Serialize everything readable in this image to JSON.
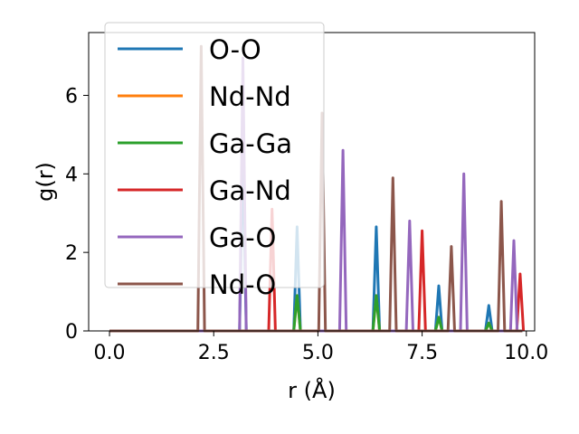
{
  "chart_data": {
    "type": "line",
    "xlabel": "r (Å)",
    "ylabel": "g(r)",
    "xlim": [
      -0.5,
      10.2
    ],
    "ylim": [
      0,
      7.6
    ],
    "xticks": [
      0.0,
      2.5,
      5.0,
      7.5,
      10.0
    ],
    "xtick_labels": [
      "0.0",
      "2.5",
      "5.0",
      "7.5",
      "10.0"
    ],
    "yticks": [
      0,
      2,
      4,
      6
    ],
    "ytick_labels": [
      "0",
      "2",
      "4",
      "6"
    ],
    "grid": false,
    "legend_position": "upper-left",
    "x_start": 0.0,
    "x_end": 9.9,
    "series": [
      {
        "name": "O-O",
        "color": "#1f77b4",
        "peaks": [
          [
            3.2,
            4.6
          ],
          [
            4.5,
            2.65
          ],
          [
            6.4,
            2.65
          ],
          [
            7.9,
            1.15
          ],
          [
            9.1,
            0.65
          ]
        ]
      },
      {
        "name": "Nd-Nd",
        "color": "#ff7f0e",
        "peaks": [
          [
            4.5,
            0.9
          ],
          [
            6.4,
            0.9
          ],
          [
            7.9,
            0.35
          ],
          [
            9.1,
            0.2
          ]
        ]
      },
      {
        "name": "Ga-Ga",
        "color": "#2ca02c",
        "peaks": [
          [
            4.5,
            0.9
          ],
          [
            6.4,
            0.9
          ],
          [
            7.9,
            0.35
          ],
          [
            9.1,
            0.2
          ]
        ]
      },
      {
        "name": "Ga-Nd",
        "color": "#d62728",
        "peaks": [
          [
            3.9,
            3.1
          ],
          [
            7.5,
            2.55
          ],
          [
            9.85,
            1.45
          ]
        ]
      },
      {
        "name": "Ga-O",
        "color": "#9467bd",
        "peaks": [
          [
            3.2,
            6.95
          ],
          [
            5.6,
            4.6
          ],
          [
            7.2,
            2.8
          ],
          [
            8.5,
            4.0
          ],
          [
            9.7,
            2.3
          ]
        ]
      },
      {
        "name": "Nd-O",
        "color": "#8c564b",
        "peaks": [
          [
            2.2,
            7.25
          ],
          [
            5.1,
            5.55
          ],
          [
            6.8,
            3.9
          ],
          [
            8.2,
            2.15
          ],
          [
            9.4,
            3.3
          ]
        ]
      }
    ]
  }
}
